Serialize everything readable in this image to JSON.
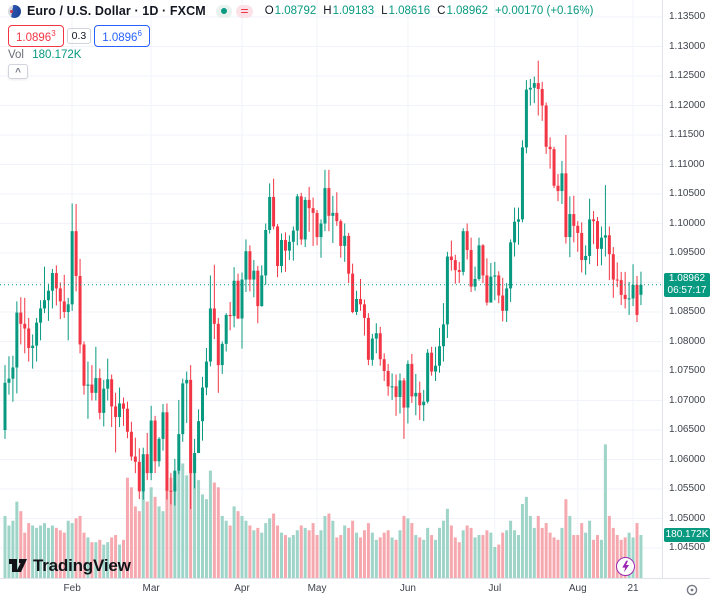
{
  "header": {
    "symbol_title": "Euro / U.S. Dollar · 1D · FXCM",
    "ohlc": {
      "o_label": "O",
      "o_value": "1.08792",
      "h_label": "H",
      "h_value": "1.09183",
      "l_label": "L",
      "l_value": "1.08616",
      "c_label": "C",
      "c_value": "1.08962",
      "change": "+0.00170 (+0.16%)"
    },
    "bid": "1.0896",
    "bid_sup": "3",
    "spread": "0.3",
    "ask": "1.0896",
    "ask_sup": "6",
    "vol_label": "Vol",
    "vol_value": "180.172K",
    "collapse_glyph": "^"
  },
  "price_axis": {
    "current_price": "1.08962",
    "countdown": "06:57:17",
    "volume_label": "180.172K"
  },
  "watermark_text": "TradingView",
  "colors": {
    "up": "#089981",
    "down": "#f23645",
    "volume_up": "#9fd4c8",
    "volume_down": "#f6a8af",
    "grid": "#f0f3fa",
    "last_price_line": "#089981",
    "bid": "#f23645",
    "ask": "#2962ff",
    "axis_text": "#3e434d",
    "lightning": "#9c27b0"
  },
  "chart_data": {
    "type": "candlestick+volume",
    "title": "Euro / U.S. Dollar · 1D · FXCM",
    "grid": true,
    "legend": "none",
    "ylim": [
      1.0435,
      1.1375
    ],
    "y_ticks": [
      "1.13500",
      "1.13000",
      "1.12500",
      "1.12000",
      "1.11500",
      "1.11000",
      "1.10500",
      "1.10000",
      "1.09500",
      "1.09000",
      "1.08500",
      "1.08000",
      "1.07500",
      "1.07000",
      "1.06500",
      "1.06000",
      "1.05500",
      "1.05000",
      "1.04500"
    ],
    "x_ticks": [
      {
        "label": "Feb",
        "index": 17
      },
      {
        "label": "Mar",
        "index": 37
      },
      {
        "label": "Apr",
        "index": 60
      },
      {
        "label": "May",
        "index": 79
      },
      {
        "label": "Jun",
        "index": 102
      },
      {
        "label": "Jul",
        "index": 124
      },
      {
        "label": "Aug",
        "index": 145
      },
      {
        "label": "21",
        "index": 159
      }
    ],
    "last_price": 1.08962,
    "volume_k_last": 180.172,
    "candles_format": [
      "open",
      "high",
      "low",
      "close",
      "volume_k"
    ],
    "candles": [
      [
        1.065,
        1.076,
        1.0635,
        1.073,
        260
      ],
      [
        1.073,
        1.0775,
        1.071,
        1.0737,
        220
      ],
      [
        1.0737,
        1.0776,
        1.0698,
        1.0756,
        240
      ],
      [
        1.0756,
        1.0868,
        1.0712,
        1.0849,
        320
      ],
      [
        1.0849,
        1.0875,
        1.0795,
        1.083,
        280
      ],
      [
        1.083,
        1.0874,
        1.078,
        1.0822,
        190
      ],
      [
        1.0822,
        1.084,
        1.0766,
        1.0789,
        230
      ],
      [
        1.0789,
        1.0812,
        1.0754,
        1.0793,
        220
      ],
      [
        1.0793,
        1.084,
        1.0766,
        1.0832,
        210
      ],
      [
        1.0832,
        1.087,
        1.0802,
        1.0856,
        220
      ],
      [
        1.0856,
        1.0927,
        1.0848,
        1.087,
        230
      ],
      [
        1.087,
        1.0898,
        1.0835,
        1.0886,
        210
      ],
      [
        1.0886,
        1.0923,
        1.0856,
        1.0916,
        220
      ],
      [
        1.0916,
        1.0929,
        1.0861,
        1.089,
        210
      ],
      [
        1.089,
        1.09,
        1.0838,
        1.0868,
        200
      ],
      [
        1.0868,
        1.0913,
        1.084,
        1.085,
        190
      ],
      [
        1.085,
        1.0874,
        1.0802,
        1.0863,
        240
      ],
      [
        1.0863,
        1.1034,
        1.0852,
        1.0987,
        230
      ],
      [
        1.0987,
        1.1033,
        1.0885,
        1.0911,
        250
      ],
      [
        1.0911,
        1.094,
        1.078,
        1.0795,
        260
      ],
      [
        1.0795,
        1.08,
        1.071,
        1.0725,
        190
      ],
      [
        1.0725,
        1.0766,
        1.0669,
        1.0727,
        170
      ],
      [
        1.0727,
        1.076,
        1.07,
        1.0713,
        150
      ],
      [
        1.0713,
        1.0791,
        1.07,
        1.0738,
        150
      ],
      [
        1.0738,
        1.0754,
        1.0668,
        1.0679,
        160
      ],
      [
        1.0679,
        1.0735,
        1.0656,
        1.072,
        140
      ],
      [
        1.072,
        1.0771,
        1.07,
        1.0736,
        150
      ],
      [
        1.0736,
        1.0744,
        1.0655,
        1.069,
        170
      ],
      [
        1.069,
        1.0713,
        1.0612,
        1.0672,
        180
      ],
      [
        1.0672,
        1.0722,
        1.0655,
        1.0695,
        140
      ],
      [
        1.0695,
        1.0705,
        1.0657,
        1.0686,
        160
      ],
      [
        1.0686,
        1.0698,
        1.0636,
        1.0647,
        420
      ],
      [
        1.0647,
        1.0664,
        1.0598,
        1.0605,
        380
      ],
      [
        1.0605,
        1.0637,
        1.0577,
        1.0596,
        300
      ],
      [
        1.0596,
        1.0619,
        1.0533,
        1.0546,
        280
      ],
      [
        1.0546,
        1.062,
        1.0532,
        1.0609,
        460
      ],
      [
        1.0609,
        1.0645,
        1.0565,
        1.0577,
        320
      ],
      [
        1.0577,
        1.0691,
        1.0565,
        1.0666,
        380
      ],
      [
        1.0666,
        1.0674,
        1.0577,
        1.0597,
        340
      ],
      [
        1.0597,
        1.0638,
        1.0588,
        1.0635,
        300
      ],
      [
        1.0635,
        1.0694,
        1.0615,
        1.068,
        280
      ],
      [
        1.068,
        1.0695,
        1.0532,
        1.0547,
        520
      ],
      [
        1.0547,
        1.0577,
        1.0524,
        1.0546,
        420
      ],
      [
        1.0546,
        1.0601,
        1.0522,
        1.0581,
        390
      ],
      [
        1.0581,
        1.0701,
        1.0575,
        1.0643,
        450
      ],
      [
        1.0643,
        1.0737,
        1.063,
        1.0729,
        480
      ],
      [
        1.0729,
        1.0749,
        1.0662,
        1.0735,
        430
      ],
      [
        1.0735,
        1.076,
        1.0516,
        1.0577,
        620
      ],
      [
        1.0577,
        1.0635,
        1.0551,
        1.0611,
        500
      ],
      [
        1.0611,
        1.0685,
        1.0611,
        1.0665,
        410
      ],
      [
        1.0665,
        1.074,
        1.0632,
        1.0722,
        350
      ],
      [
        1.0722,
        1.0789,
        1.0709,
        1.0766,
        330
      ],
      [
        1.0766,
        1.0912,
        1.0758,
        1.0856,
        450
      ],
      [
        1.0856,
        1.093,
        1.0804,
        1.083,
        400
      ],
      [
        1.083,
        1.084,
        1.0713,
        1.076,
        380
      ],
      [
        1.076,
        1.08,
        1.0745,
        1.0796,
        260
      ],
      [
        1.0796,
        1.0848,
        1.0783,
        1.0845,
        240
      ],
      [
        1.0845,
        1.0867,
        1.0819,
        1.0843,
        220
      ],
      [
        1.0843,
        1.0926,
        1.0824,
        1.0903,
        300
      ],
      [
        1.0903,
        1.0915,
        1.0838,
        1.0839,
        280
      ],
      [
        1.0839,
        1.0917,
        1.0788,
        1.0905,
        260
      ],
      [
        1.0905,
        1.0973,
        1.0884,
        1.0953,
        240
      ],
      [
        1.0953,
        1.0963,
        1.0885,
        1.0905,
        220
      ],
      [
        1.0905,
        1.0938,
        1.0875,
        1.092,
        200
      ],
      [
        1.092,
        1.0928,
        1.0831,
        1.086,
        210
      ],
      [
        1.086,
        1.0929,
        1.0859,
        1.0912,
        190
      ],
      [
        1.0912,
        1.1,
        1.0896,
        1.0989,
        230
      ],
      [
        1.0989,
        1.1068,
        1.0983,
        1.1045,
        250
      ],
      [
        1.1045,
        1.1076,
        1.099,
        1.0995,
        270
      ],
      [
        1.0995,
        1.0999,
        1.0909,
        1.0928,
        220
      ],
      [
        1.0928,
        1.0983,
        1.0917,
        1.0972,
        190
      ],
      [
        1.0972,
        1.0985,
        1.0918,
        1.0954,
        180
      ],
      [
        1.0954,
        1.098,
        1.0938,
        1.0969,
        170
      ],
      [
        1.0969,
        1.0995,
        1.0937,
        1.0988,
        180
      ],
      [
        1.0988,
        1.105,
        1.0963,
        1.1046,
        200
      ],
      [
        1.1046,
        1.1052,
        1.0964,
        1.0973,
        220
      ],
      [
        1.0973,
        1.1045,
        1.096,
        1.104,
        210
      ],
      [
        1.104,
        1.1062,
        1.0986,
        1.1026,
        200
      ],
      [
        1.1026,
        1.1044,
        1.0962,
        1.1018,
        230
      ],
      [
        1.1018,
        1.1023,
        1.0963,
        1.0977,
        180
      ],
      [
        1.0977,
        1.1007,
        1.0942,
        1.1,
        200
      ],
      [
        1.1,
        1.1091,
        1.0987,
        1.106,
        260
      ],
      [
        1.106,
        1.1091,
        1.0987,
        1.1013,
        270
      ],
      [
        1.1013,
        1.1047,
        1.0967,
        1.1018,
        240
      ],
      [
        1.1018,
        1.1053,
        1.0996,
        1.1004,
        170
      ],
      [
        1.1004,
        1.1007,
        1.0942,
        1.0962,
        180
      ],
      [
        1.0962,
        1.1,
        1.0935,
        1.0979,
        220
      ],
      [
        1.0979,
        1.0984,
        1.0899,
        1.0915,
        210
      ],
      [
        1.0915,
        1.0932,
        1.0848,
        1.085,
        240
      ],
      [
        1.085,
        1.0886,
        1.0845,
        1.0872,
        190
      ],
      [
        1.0872,
        1.0906,
        1.0852,
        1.0863,
        170
      ],
      [
        1.0863,
        1.0871,
        1.081,
        1.084,
        200
      ],
      [
        1.084,
        1.0848,
        1.076,
        1.0769,
        230
      ],
      [
        1.0769,
        1.0813,
        1.0759,
        1.0805,
        190
      ],
      [
        1.0805,
        1.0831,
        1.078,
        1.0814,
        160
      ],
      [
        1.0814,
        1.0825,
        1.0759,
        1.077,
        170
      ],
      [
        1.077,
        1.078,
        1.0733,
        1.075,
        190
      ],
      [
        1.075,
        1.0762,
        1.0708,
        1.0724,
        200
      ],
      [
        1.0724,
        1.0746,
        1.0701,
        1.0724,
        170
      ],
      [
        1.0724,
        1.0744,
        1.0674,
        1.0706,
        160
      ],
      [
        1.0706,
        1.0746,
        1.0678,
        1.0734,
        200
      ],
      [
        1.0734,
        1.0738,
        1.0635,
        1.0688,
        260
      ],
      [
        1.0688,
        1.0768,
        1.0661,
        1.0762,
        250
      ],
      [
        1.0762,
        1.0779,
        1.0696,
        1.0707,
        230
      ],
      [
        1.0707,
        1.0745,
        1.0675,
        1.0713,
        180
      ],
      [
        1.0713,
        1.0732,
        1.0667,
        1.0692,
        170
      ],
      [
        1.0692,
        1.0718,
        1.0665,
        1.0698,
        160
      ],
      [
        1.0698,
        1.0787,
        1.0695,
        1.0781,
        210
      ],
      [
        1.0781,
        1.0791,
        1.0742,
        1.0749,
        180
      ],
      [
        1.0749,
        1.0791,
        1.0733,
        1.0759,
        160
      ],
      [
        1.0759,
        1.0823,
        1.0747,
        1.0792,
        210
      ],
      [
        1.0792,
        1.0865,
        1.0766,
        1.0829,
        240
      ],
      [
        1.0829,
        1.0952,
        1.0806,
        1.0944,
        290
      ],
      [
        1.0944,
        1.0971,
        1.092,
        1.0938,
        220
      ],
      [
        1.0938,
        1.0947,
        1.0898,
        1.0921,
        170
      ],
      [
        1.0921,
        1.0935,
        1.0899,
        1.0918,
        150
      ],
      [
        1.0918,
        1.0992,
        1.0912,
        1.0987,
        200
      ],
      [
        1.0987,
        1.1,
        1.0939,
        1.0955,
        220
      ],
      [
        1.0955,
        1.0976,
        1.0884,
        1.0893,
        210
      ],
      [
        1.0893,
        1.0927,
        1.0886,
        1.0906,
        170
      ],
      [
        1.0906,
        1.0976,
        1.0903,
        1.0963,
        180
      ],
      [
        1.0963,
        1.0965,
        1.0899,
        1.0912,
        180
      ],
      [
        1.0912,
        1.0941,
        1.0861,
        1.0866,
        200
      ],
      [
        1.0866,
        1.0933,
        1.0866,
        1.091,
        190
      ],
      [
        1.091,
        1.0935,
        1.087,
        1.0912,
        130
      ],
      [
        1.0912,
        1.0919,
        1.0865,
        1.0878,
        140
      ],
      [
        1.0878,
        1.0908,
        1.0834,
        1.0852,
        190
      ],
      [
        1.0852,
        1.0899,
        1.0833,
        1.089,
        200
      ],
      [
        1.089,
        1.0973,
        1.0867,
        1.0968,
        240
      ],
      [
        1.0968,
        1.1027,
        1.0944,
        1.1003,
        200
      ],
      [
        1.1003,
        1.1027,
        1.0964,
        1.1007,
        180
      ],
      [
        1.1007,
        1.1141,
        1.1002,
        1.1129,
        310
      ],
      [
        1.1129,
        1.1243,
        1.1119,
        1.1227,
        340
      ],
      [
        1.1227,
        1.1245,
        1.12,
        1.123,
        260
      ],
      [
        1.123,
        1.1249,
        1.1204,
        1.1238,
        210
      ],
      [
        1.1238,
        1.1276,
        1.1183,
        1.1228,
        260
      ],
      [
        1.1228,
        1.124,
        1.1174,
        1.12,
        210
      ],
      [
        1.12,
        1.1205,
        1.1118,
        1.113,
        230
      ],
      [
        1.113,
        1.1146,
        1.1093,
        1.1126,
        190
      ],
      [
        1.1126,
        1.113,
        1.106,
        1.1064,
        170
      ],
      [
        1.1064,
        1.1084,
        1.1038,
        1.1055,
        160
      ],
      [
        1.1055,
        1.1106,
        1.1033,
        1.1085,
        210
      ],
      [
        1.1085,
        1.115,
        1.0966,
        1.0977,
        330
      ],
      [
        1.0977,
        1.1046,
        1.0943,
        1.1016,
        260
      ],
      [
        1.1016,
        1.1047,
        1.0968,
        1.0996,
        180
      ],
      [
        1.0996,
        1.1004,
        1.0952,
        1.0984,
        180
      ],
      [
        1.0984,
        1.1002,
        1.0917,
        1.0938,
        230
      ],
      [
        1.0938,
        1.0963,
        1.0913,
        1.0945,
        190
      ],
      [
        1.0945,
        1.1042,
        1.0931,
        1.1007,
        240
      ],
      [
        1.1007,
        1.1021,
        1.0965,
        1.1004,
        160
      ],
      [
        1.1004,
        1.1011,
        1.0928,
        1.0957,
        180
      ],
      [
        1.0957,
        1.0995,
        1.0929,
        1.0976,
        160
      ],
      [
        1.0976,
        1.1065,
        1.0944,
        1.098,
        560
      ],
      [
        1.098,
        1.0995,
        1.0904,
        1.0948,
        260
      ],
      [
        1.0948,
        1.096,
        1.0874,
        1.0905,
        210
      ],
      [
        1.0905,
        1.0934,
        1.0892,
        1.0904,
        180
      ],
      [
        1.0904,
        1.0918,
        1.0862,
        1.0879,
        160
      ],
      [
        1.0879,
        1.0918,
        1.0856,
        1.0872,
        170
      ],
      [
        1.0872,
        1.0901,
        1.0845,
        1.0873,
        190
      ],
      [
        1.0873,
        1.0931,
        1.086,
        1.0896,
        170
      ],
      [
        1.0896,
        1.0911,
        1.0833,
        1.0845,
        230
      ],
      [
        1.08792,
        1.09183,
        1.08616,
        1.08962,
        180.172
      ]
    ]
  }
}
